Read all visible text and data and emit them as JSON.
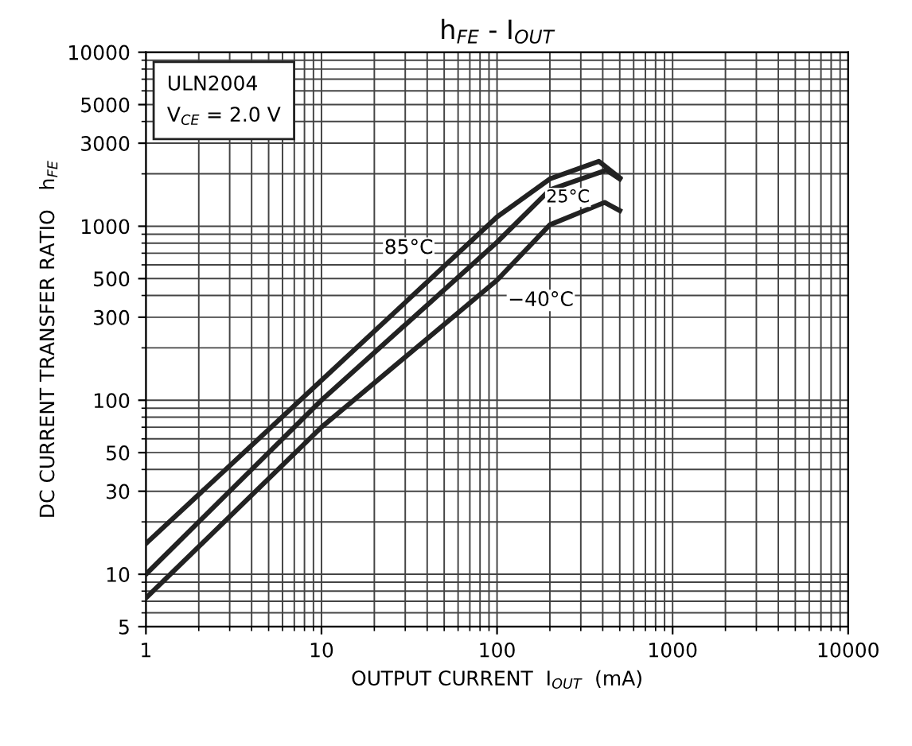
{
  "chart_data": {
    "type": "line",
    "title": "h$_{FE}$ - I$_{OUT}$",
    "xlabel": "OUTPUT CURRENT  I$_{OUT}$  (mA)",
    "ylabel": "DC CURRENT TRANSFER RATIO   h$_{FE}$",
    "annotations": [
      "ULN2004",
      "V$_{CE}$ = 2.0 V"
    ],
    "log": "xy",
    "grid": true,
    "legend": false,
    "marker": "none",
    "line_style": "solid",
    "xlim": [
      1,
      10000
    ],
    "xticks": [
      1,
      10,
      100,
      1000,
      10000
    ],
    "ylim": [
      5,
      10000
    ],
    "yticks": [
      5,
      10,
      30,
      50,
      100,
      300,
      500,
      1000,
      3000,
      5000,
      10000
    ],
    "series": [
      {
        "name": "85°C",
        "color": "#222222",
        "x": [
          1,
          10,
          100,
          200,
          380,
          500
        ],
        "values": [
          15,
          130,
          1130,
          1870,
          2360,
          1900
        ]
      },
      {
        "name": "25°C",
        "color": "#222222",
        "x": [
          1,
          10,
          100,
          200,
          420,
          500
        ],
        "values": [
          10,
          100,
          810,
          1620,
          2100,
          1870
        ]
      },
      {
        "name": "−40°C",
        "color": "#222222",
        "x": [
          1,
          10,
          100,
          200,
          410,
          500
        ],
        "values": [
          7.3,
          70,
          490,
          1020,
          1370,
          1230
        ]
      }
    ]
  }
}
